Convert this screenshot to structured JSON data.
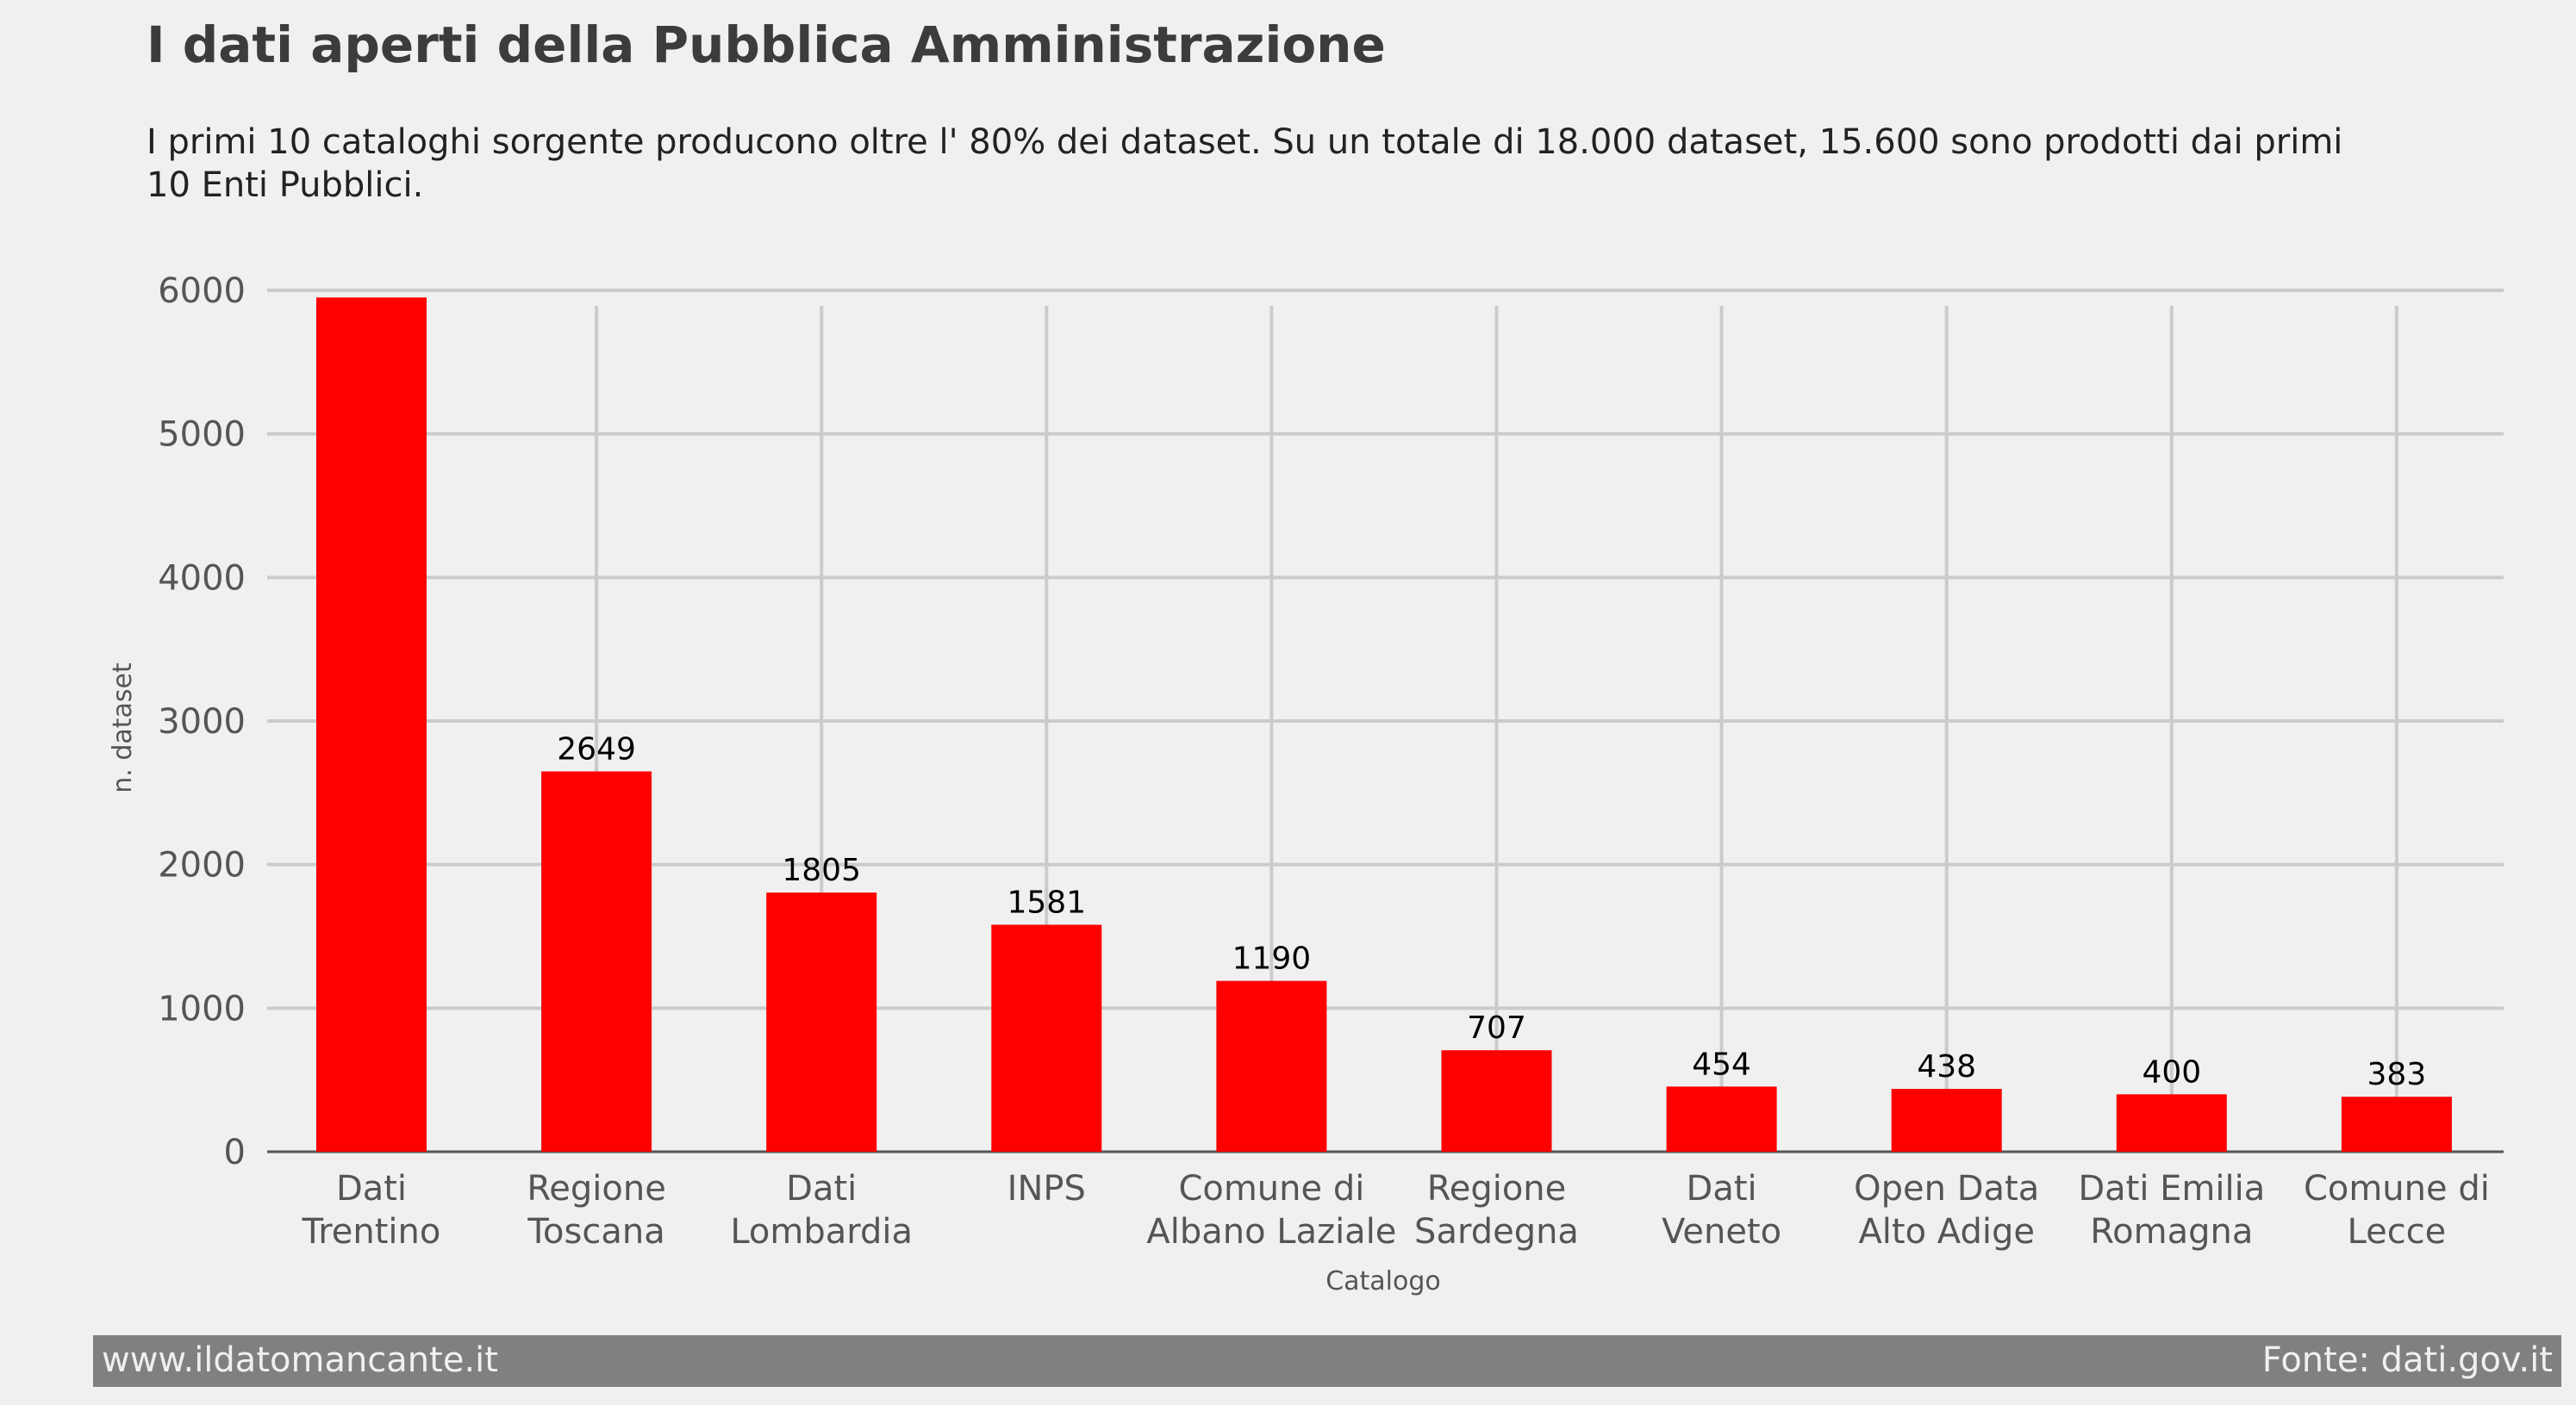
{
  "header": {
    "title": "I dati aperti della Pubblica Amministrazione",
    "subtitle": "I primi 10 cataloghi sorgente producono oltre l' 80% dei dataset. Su un totale di 18.000 dataset, 15.600 sono prodotti dai primi 10 Enti Pubblici."
  },
  "footer": {
    "left": "www.ildatomancante.it",
    "right": "Fonte: dati.gov.it"
  },
  "colors": {
    "bar": "#ff0000",
    "background": "#f0f0f0",
    "grid": "#cbcbcb",
    "footer_bg": "#808080"
  },
  "chart_data": {
    "type": "bar",
    "title": "I dati aperti della Pubblica Amministrazione",
    "subtitle": "I primi 10 cataloghi sorgente producono oltre l' 80% dei dataset. Su un totale di 18.000 dataset, 15.600 sono prodotti dai primi 10 Enti Pubblici.",
    "xlabel": "Catalogo",
    "ylabel": "n. dataset",
    "categories": [
      [
        "Dati",
        "Trentino"
      ],
      [
        "Regione",
        "Toscana"
      ],
      [
        "Dati",
        "Lombardia"
      ],
      [
        "INPS"
      ],
      [
        "Comune di",
        "Albano Laziale"
      ],
      [
        "Regione",
        "Sardegna"
      ],
      [
        "Dati",
        "Veneto"
      ],
      [
        "Open Data",
        "Alto Adige"
      ],
      [
        "Dati Emilia",
        "Romagna"
      ],
      [
        "Comune di",
        "Lecce"
      ]
    ],
    "values": [
      5950,
      2649,
      1805,
      1581,
      1190,
      707,
      454,
      438,
      400,
      383
    ],
    "data_labels": [
      "",
      "2649",
      "1805",
      "1581",
      "1190",
      "707",
      "454",
      "438",
      "400",
      "383"
    ],
    "yticks": [
      0,
      1000,
      2000,
      3000,
      4000,
      5000,
      6000
    ],
    "ylim": [
      0,
      6000
    ],
    "grid": true,
    "legend": "none"
  }
}
